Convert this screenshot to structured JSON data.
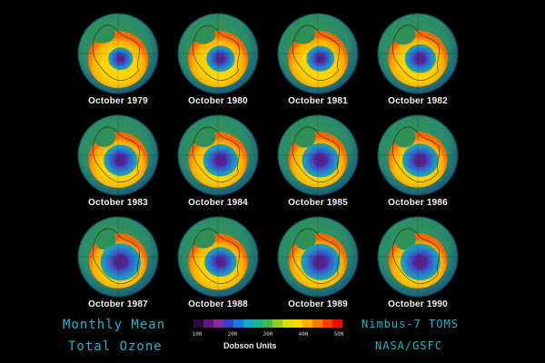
{
  "panels": [
    {
      "label": "October 1979",
      "hole": 0.28
    },
    {
      "label": "October 1980",
      "hole": 0.42
    },
    {
      "label": "October 1981",
      "hole": 0.4
    },
    {
      "label": "October 1982",
      "hole": 0.52
    },
    {
      "label": "October 1983",
      "hole": 0.62
    },
    {
      "label": "October 1984",
      "hole": 0.66
    },
    {
      "label": "October 1985",
      "hole": 0.74
    },
    {
      "label": "October 1986",
      "hole": 0.7
    },
    {
      "label": "October 1987",
      "hole": 0.86
    },
    {
      "label": "October 1988",
      "hole": 0.56
    },
    {
      "label": "October 1989",
      "hole": 0.82
    },
    {
      "label": "October 1990",
      "hole": 0.84
    }
  ],
  "title": {
    "line1": "Monthly Mean",
    "line2": "Total Ozone"
  },
  "source": {
    "line1": "Nimbus-7 TOMS",
    "line2": "NASA/GSFC"
  },
  "scale": {
    "ticks": [
      "100",
      "200",
      "300",
      "400",
      "500"
    ],
    "units": "Dobson Units",
    "colors": [
      "#2a0b3f",
      "#5a1d7a",
      "#8a2d9a",
      "#3a3dc4",
      "#1e78d8",
      "#1aa6c8",
      "#1cb48c",
      "#3fba46",
      "#8fcf28",
      "#d8dd10",
      "#ffd500",
      "#ffb000",
      "#ff7a00",
      "#ff3c00",
      "#e11000"
    ]
  }
}
